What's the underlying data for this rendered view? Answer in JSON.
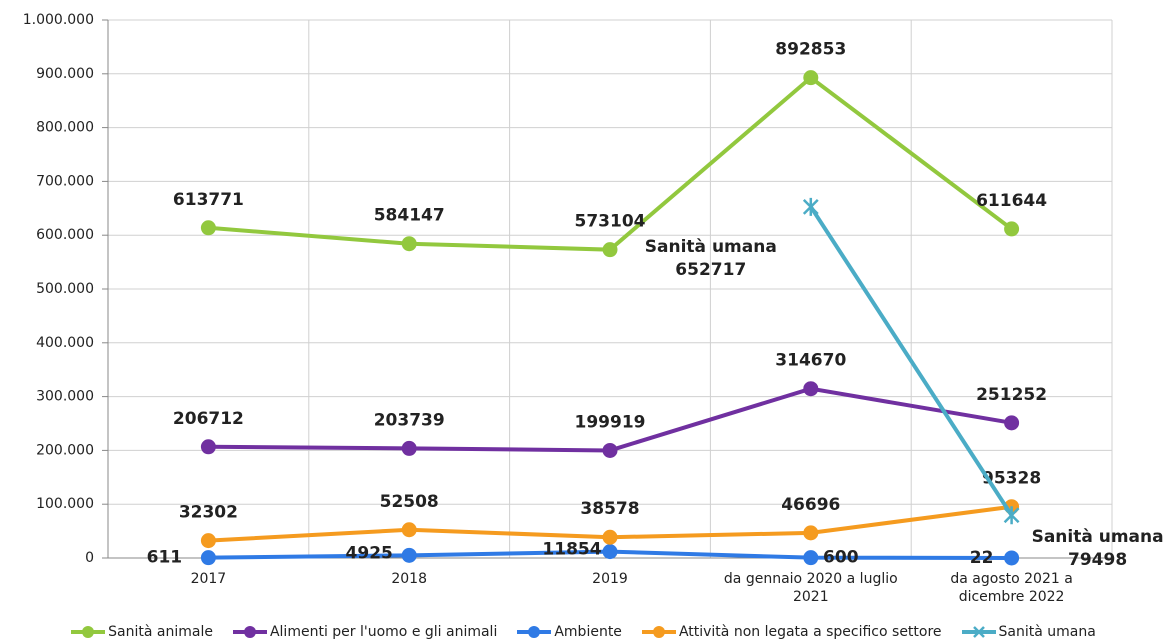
{
  "chart_data": {
    "type": "line",
    "categories": [
      "2017",
      "2018",
      "2019",
      "da gennaio 2020 a luglio 2021",
      "da agosto 2021 a dicembre 2022"
    ],
    "series": [
      {
        "name": "Sanità animale",
        "color": "#92c83e",
        "values": [
          613771,
          584147,
          573104,
          892853,
          611644
        ]
      },
      {
        "name": "Alimenti per l'uomo e gli animali",
        "color": "#7030a0",
        "values": [
          206712,
          203739,
          199919,
          314670,
          251252
        ]
      },
      {
        "name": "Ambiente",
        "color": "#2f7ae5",
        "values": [
          611,
          4925,
          11854,
          600,
          22
        ]
      },
      {
        "name": "Attività non legata a specifico settore",
        "color": "#f59b1f",
        "values": [
          32302,
          52508,
          38578,
          46696,
          95328
        ]
      },
      {
        "name": "Sanità umana",
        "color": "#4bacc6",
        "values": [
          null,
          null,
          null,
          652717,
          79498
        ]
      }
    ],
    "ylim": [
      0,
      1000000
    ],
    "yticks": [
      0,
      {
        "value": 100000,
        "label": "100.000"
      },
      {
        "value": 200000,
        "label": "200.000"
      },
      {
        "value": 300000,
        "label": "300.000"
      },
      {
        "value": 400000,
        "label": "400.000"
      },
      {
        "value": 500000,
        "label": "500.000"
      },
      {
        "value": 600000,
        "label": "600.000"
      },
      {
        "value": 700000,
        "label": "700.000"
      },
      {
        "value": 800000,
        "label": "800.000"
      },
      {
        "value": 900000,
        "label": "900.000"
      },
      {
        "value": 1000000,
        "label": "1.000.000"
      }
    ],
    "grid": true,
    "legend": "bottom"
  }
}
